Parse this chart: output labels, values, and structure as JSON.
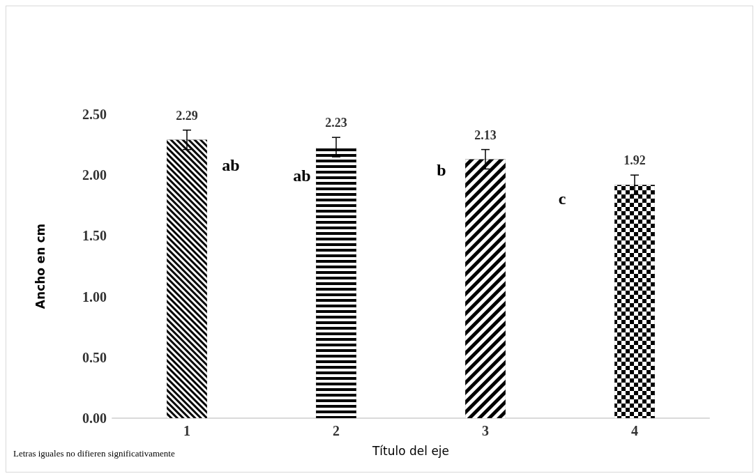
{
  "chart_data": {
    "type": "bar",
    "xlabel": "Título del eje",
    "ylabel": "Ancho en cm",
    "categories": [
      "1",
      "2",
      "3",
      "4"
    ],
    "values": [
      2.29,
      2.23,
      2.13,
      1.92
    ],
    "errors": [
      0.08,
      0.08,
      0.08,
      0.08
    ],
    "color": "#000000",
    "data_labels": true,
    "ylim": [
      0,
      2.5
    ],
    "yticks": [
      {
        "value": 0,
        "label": "0.00"
      },
      {
        "value": 0.5,
        "label": "0.50"
      },
      {
        "value": 1,
        "label": "1.00"
      },
      {
        "value": 1.5,
        "label": "1.50"
      },
      {
        "value": 2,
        "label": "2.00"
      },
      {
        "value": 2.5,
        "label": "2.50"
      }
    ],
    "grid": false,
    "annotations": [
      "ab",
      "ab",
      "b",
      "c",
      "Letras iguales no difieren significativamente"
    ]
  }
}
